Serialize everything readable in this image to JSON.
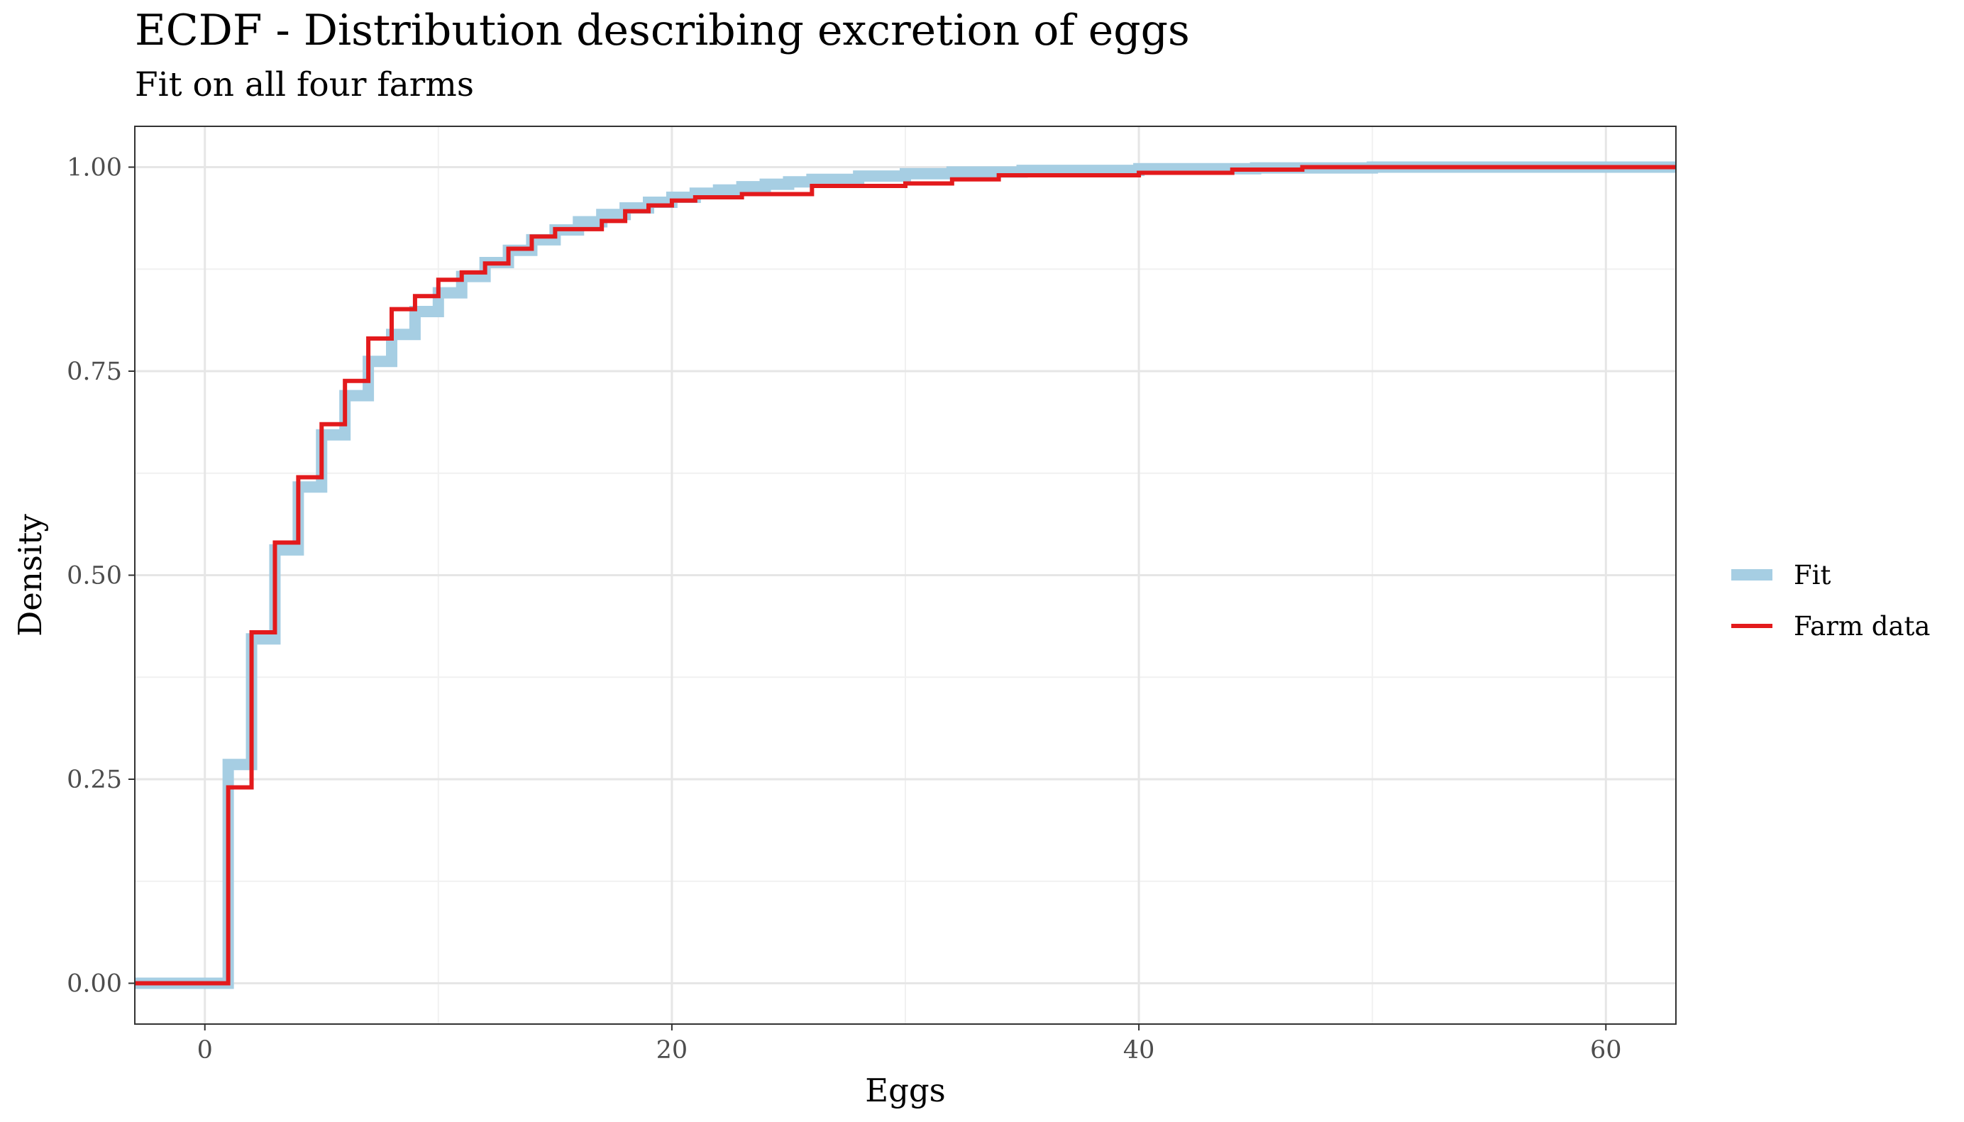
{
  "chart_data": {
    "type": "line",
    "step": true,
    "title": "ECDF - Distribution describing excretion of eggs",
    "subtitle": "Fit on all four farms",
    "xlabel": "Eggs",
    "ylabel": "Density",
    "xlim": [
      -3,
      63
    ],
    "ylim": [
      -0.05,
      1.05
    ],
    "x_ticks": [
      0,
      20,
      40,
      60
    ],
    "x_tick_labels": [
      "0",
      "20",
      "40",
      "60"
    ],
    "y_ticks": [
      0,
      0.25,
      0.5,
      0.75,
      1.0
    ],
    "y_tick_labels": [
      "0.00",
      "0.25",
      "0.50",
      "0.75",
      "1.00"
    ],
    "grid": true,
    "legend_position": "right",
    "series": [
      {
        "name": "Fit",
        "color": "#a6cee3",
        "x": [
          -3,
          1,
          2,
          3,
          4,
          5,
          6,
          7,
          8,
          9,
          10,
          11,
          12,
          13,
          14,
          15,
          16,
          17,
          18,
          19,
          20,
          21,
          22,
          23,
          24,
          25,
          26,
          28,
          30,
          32,
          35,
          40,
          45,
          50,
          63
        ],
        "y": [
          0.0,
          0.268,
          0.422,
          0.531,
          0.608,
          0.672,
          0.72,
          0.762,
          0.795,
          0.823,
          0.846,
          0.866,
          0.883,
          0.898,
          0.911,
          0.923,
          0.933,
          0.942,
          0.95,
          0.957,
          0.963,
          0.968,
          0.972,
          0.976,
          0.979,
          0.982,
          0.985,
          0.989,
          0.992,
          0.994,
          0.996,
          0.998,
          0.999,
          1.0,
          1.0
        ]
      },
      {
        "name": "Farm data",
        "color": "#e31a1c",
        "x": [
          -3,
          1,
          2,
          3,
          4,
          5,
          6,
          7,
          8,
          9,
          10,
          11,
          12,
          13,
          14,
          15,
          17,
          18,
          19,
          20,
          21,
          23,
          26,
          30,
          32,
          34,
          40,
          44,
          47,
          63
        ],
        "y": [
          0.0,
          0.24,
          0.43,
          0.54,
          0.62,
          0.685,
          0.738,
          0.79,
          0.826,
          0.842,
          0.862,
          0.871,
          0.882,
          0.9,
          0.915,
          0.924,
          0.934,
          0.946,
          0.953,
          0.959,
          0.963,
          0.967,
          0.977,
          0.98,
          0.985,
          0.99,
          0.993,
          0.997,
          1.0,
          1.0
        ]
      }
    ]
  }
}
